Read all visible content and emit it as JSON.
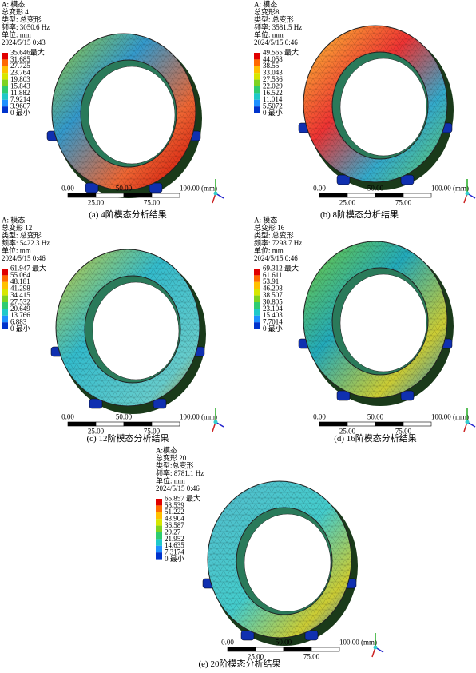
{
  "panels": [
    {
      "header": [
        "A: 模态",
        "总变形 4",
        "类型: 总变形",
        "频率: 3050.6 Hz",
        "单位: mm",
        "2024/5/15 0:43"
      ],
      "legend": [
        "35.646最大",
        "31.685",
        "27.725",
        "23.764",
        "19.803",
        "15.843",
        "11.882",
        "7.9214",
        "3.9607",
        "0 最小"
      ],
      "scale_top": [
        "0.00",
        "50.00",
        "100.00 (mm)"
      ],
      "scale_bottom": [
        "25.00",
        "75.00"
      ],
      "caption": "(a) 4阶模态分析结果"
    },
    {
      "header": [
        "A: 模态",
        "总变形8",
        "类型: 总变形",
        "频率: 3581.5 Hz",
        "单位: mm",
        "2024/5/15 0:46"
      ],
      "legend": [
        "49.565 最大",
        "44.058",
        "38.55",
        "33.043",
        "27.536",
        "22.029",
        "16.522",
        "11.014",
        "5.5072",
        "0 最小"
      ],
      "scale_top": [
        "0.00",
        "50.00",
        "100.00 (mm)"
      ],
      "scale_bottom": [
        "25.00",
        "75.00"
      ],
      "caption": "(b) 8阶模态分析结果"
    },
    {
      "header": [
        "A: 模态",
        "总变形 12",
        "类型: 总变形",
        "频率: 5422.3 Hz",
        "单位: mm",
        "2024/5/15 0:46"
      ],
      "legend": [
        "61.947 最大",
        "55.064",
        "48.181",
        "41.298",
        "34.415",
        "27.532",
        "20.649",
        "13.766",
        "6.883",
        "0 最小"
      ],
      "scale_top": [
        "0.00",
        "50.00",
        "100.00 (mm)"
      ],
      "scale_bottom": [
        "25.00",
        "75.00"
      ],
      "caption": "(c) 12阶模态分析结果"
    },
    {
      "header": [
        "A: 模态",
        "总变形 16",
        "类型: 总变形",
        "频率: 7298.7 Hz",
        "单位: mm",
        "2024/5/15 0:46"
      ],
      "legend": [
        "69.312 最大",
        "61.611",
        "53.91",
        "46.208",
        "38.507",
        "30.805",
        "23.104",
        "15.403",
        "7.7014",
        "0 最小"
      ],
      "scale_top": [
        "0.00",
        "50.00",
        "100.00 (mm)"
      ],
      "scale_bottom": [
        "25.00",
        "75.00"
      ],
      "caption": "(d) 16阶模态分析结果"
    },
    {
      "header": [
        "A:模态",
        "总变形 20",
        "类型:总变形",
        "频率: 8781.1 Hz",
        "单位: mm",
        "2024/5/15 0:46"
      ],
      "legend": [
        "65.857 最大",
        "58.539",
        "51.222",
        "43.904",
        "36.587",
        "29.27",
        "21.952",
        "14.635",
        "7.3174",
        "0 最小"
      ],
      "scale_top": [
        "0.00",
        "50.00",
        "100.00 (mm)"
      ],
      "scale_bottom": [
        "25.00",
        "75.00"
      ],
      "caption": "(e) 20阶模态分析结果"
    }
  ]
}
